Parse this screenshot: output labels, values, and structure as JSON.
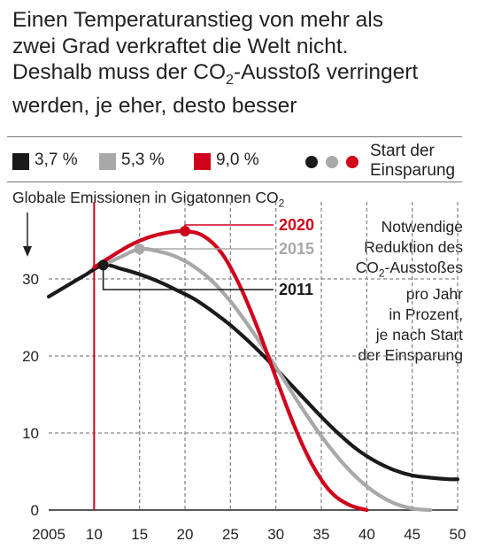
{
  "headline": {
    "line1": "Einen Temperaturanstieg von mehr als",
    "line2": "zwei Grad verkraftet die Welt nicht.",
    "line3_pre": "Deshalb muss der CO",
    "line3_sub": "2",
    "line3_post": "-Ausstoß verringert",
    "line4": "werden, je eher, desto besser"
  },
  "legend": {
    "items": [
      {
        "label": "3,7 %",
        "color": "#1a1a1a"
      },
      {
        "label": "5,3 %",
        "color": "#a8a8a8"
      },
      {
        "label": "9,0 %",
        "color": "#d0021b"
      }
    ],
    "start_label_line1": "Start der",
    "start_label_line2": "Einsparung"
  },
  "y_title": {
    "pre": "Globale Emissionen in Gigatonnen CO",
    "sub": "2"
  },
  "note": {
    "line1": "Notwendige",
    "line2": "Reduktion des",
    "line3_pre": "CO",
    "line3_sub": "2",
    "line3_post": "-Ausstoßes",
    "line4": "pro Jahr",
    "line5": "in Prozent,",
    "line6": "je nach Start",
    "line7": "der Einsparung"
  },
  "chart_data": {
    "type": "line",
    "xlabel": "",
    "ylabel": "Globale Emissionen in Gigatonnen CO2",
    "xlim": [
      2005,
      2050
    ],
    "ylim": [
      0,
      40
    ],
    "x_ticks": [
      2005,
      2010,
      2015,
      2020,
      2025,
      2030,
      2035,
      2040,
      2045,
      2050
    ],
    "x_tick_labels": [
      "2005",
      "10",
      "15",
      "20",
      "25",
      "30",
      "35",
      "40",
      "45",
      "50"
    ],
    "y_ticks": [
      0,
      10,
      20,
      30
    ],
    "y_tick_labels": [
      "0",
      "10",
      "20",
      "30"
    ],
    "grid": true,
    "reference_line_x": 2010,
    "series": [
      {
        "name": "3,7 %",
        "start_label": "2011",
        "color": "#1a1a1a",
        "start": [
          2011,
          31.8
        ],
        "x": [
          2005,
          2007,
          2009,
          2011,
          2013,
          2015,
          2017,
          2019,
          2021,
          2023,
          2025,
          2027,
          2029,
          2031,
          2033,
          2035,
          2037,
          2039,
          2041,
          2043,
          2045,
          2047,
          2049,
          2050
        ],
        "values": [
          27.7,
          29.1,
          30.5,
          31.8,
          31.3,
          30.6,
          29.7,
          28.6,
          27.4,
          25.8,
          24.0,
          21.9,
          19.6,
          17.1,
          14.6,
          12.1,
          9.8,
          7.8,
          6.3,
          5.2,
          4.5,
          4.2,
          4.0,
          4.0
        ]
      },
      {
        "name": "5,3 %",
        "start_label": "2015",
        "color": "#a8a8a8",
        "start": [
          2015,
          33.9
        ],
        "x": [
          2011,
          2013,
          2015,
          2017,
          2019,
          2021,
          2023,
          2025,
          2027,
          2029,
          2031,
          2033,
          2035,
          2037,
          2039,
          2041,
          2043,
          2045,
          2047
        ],
        "values": [
          31.8,
          32.9,
          33.9,
          33.6,
          32.9,
          31.6,
          29.7,
          27.1,
          23.9,
          20.4,
          16.7,
          13.0,
          9.6,
          6.6,
          4.1,
          2.2,
          0.9,
          0.2,
          0.0
        ]
      },
      {
        "name": "9,0 %",
        "start_label": "2020",
        "color": "#d0021b",
        "start": [
          2020,
          36.2
        ],
        "x": [
          2010,
          2012,
          2014,
          2016,
          2018,
          2020,
          2022,
          2024,
          2026,
          2028,
          2030,
          2032,
          2034,
          2036,
          2038,
          2040
        ],
        "values": [
          31.5,
          33.0,
          34.4,
          35.4,
          36.0,
          36.2,
          35.6,
          33.4,
          29.2,
          23.6,
          17.2,
          11.0,
          5.9,
          2.4,
          0.7,
          0.0
        ]
      }
    ]
  }
}
